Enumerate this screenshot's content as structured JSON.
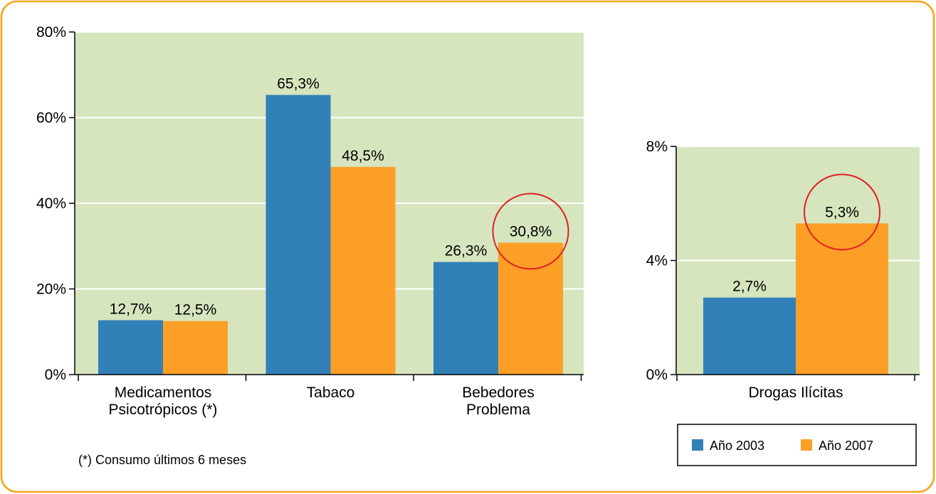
{
  "colors": {
    "series_2003": "#3280b8",
    "series_2007": "#fb9f26",
    "plot_background": "#d6e5be",
    "frame_border": "#f4a51c",
    "highlight_circle": "#e31e24"
  },
  "note": "(*) Consumo últimos 6 meses",
  "chart_data": [
    {
      "type": "bar",
      "categories": [
        "Medicamentos\nPsicotrópicos (*)",
        "Tabaco",
        "Bebedores\nProblema"
      ],
      "series": [
        {
          "name": "Año 2003",
          "values": [
            12.7,
            65.3,
            26.3
          ],
          "labels": [
            "12,7%",
            "65,3%",
            "26,3%"
          ]
        },
        {
          "name": "Año 2007",
          "values": [
            12.5,
            48.5,
            30.8
          ],
          "labels": [
            "12,5%",
            "48,5%",
            "30,8%"
          ]
        }
      ],
      "ylim": [
        0,
        80
      ],
      "yticks": [
        0,
        20,
        40,
        60,
        80
      ],
      "ytick_labels": [
        "0%",
        "20%",
        "40%",
        "60%",
        "80%"
      ],
      "grid": true,
      "highlight": {
        "category": "Bebedores\nProblema",
        "series": "Año 2007"
      }
    },
    {
      "type": "bar",
      "categories": [
        "Drogas Ilícitas"
      ],
      "series": [
        {
          "name": "Año 2003",
          "values": [
            2.7
          ],
          "labels": [
            "2,7%"
          ]
        },
        {
          "name": "Año 2007",
          "values": [
            5.3
          ],
          "labels": [
            "5,3%"
          ]
        }
      ],
      "ylim": [
        0,
        8
      ],
      "yticks": [
        0,
        4,
        8
      ],
      "ytick_labels": [
        "0%",
        "4%",
        "8%"
      ],
      "grid": true,
      "highlight": {
        "category": "Drogas Ilícitas",
        "series": "Año 2007"
      }
    }
  ],
  "legend": {
    "position": "bottom-right",
    "items": [
      {
        "label": "Año 2003",
        "color": "#3280b8"
      },
      {
        "label": "Año 2007",
        "color": "#fb9f26"
      }
    ]
  }
}
